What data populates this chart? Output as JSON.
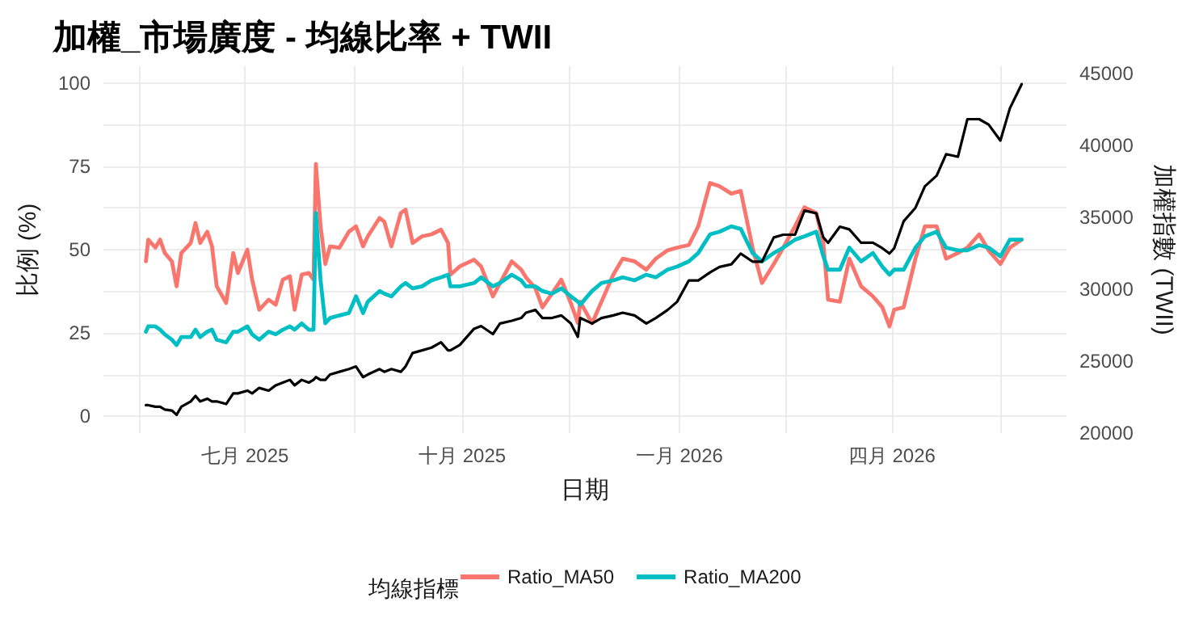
{
  "chart_data": {
    "type": "line",
    "title": "加權_市場廣度 - 均線比率 + TWII",
    "xlabel": "日期",
    "ylabel": "比例 (%)",
    "y2label": "加權指數 (TWII)",
    "legend_title": "均線指標",
    "x": [
      "2025-05-20",
      "2025-05-21",
      "2025-05-24",
      "2025-05-26",
      "2025-05-28",
      "2025-05-31",
      "2025-06-02",
      "2025-06-04",
      "2025-06-08",
      "2025-06-10",
      "2025-06-12",
      "2025-06-15",
      "2025-06-17",
      "2025-06-19",
      "2025-06-23",
      "2025-06-26",
      "2025-06-28",
      "2025-07-02",
      "2025-07-04",
      "2025-07-07",
      "2025-07-11",
      "2025-07-14",
      "2025-07-17",
      "2025-07-20",
      "2025-07-22",
      "2025-07-25",
      "2025-07-28",
      "2025-07-30",
      "2025-07-31",
      "2025-08-02",
      "2025-08-04",
      "2025-08-06",
      "2025-08-10",
      "2025-08-14",
      "2025-08-17",
      "2025-08-20",
      "2025-08-22",
      "2025-08-27",
      "2025-08-29",
      "2025-09-01",
      "2025-09-05",
      "2025-09-07",
      "2025-09-10",
      "2025-09-14",
      "2025-09-18",
      "2025-09-22",
      "2025-09-25",
      "2025-09-26",
      "2025-09-30",
      "2025-10-06",
      "2025-10-09",
      "2025-10-14",
      "2025-10-17",
      "2025-10-22",
      "2025-10-26",
      "2025-10-28",
      "2025-11-01",
      "2025-11-04",
      "2025-11-08",
      "2025-11-12",
      "2025-11-16",
      "2025-11-19",
      "2025-11-20",
      "2025-11-25",
      "2025-11-29",
      "2025-12-04",
      "2025-12-08",
      "2025-12-13",
      "2025-12-18",
      "2025-12-22",
      "2025-12-27",
      "2025-12-31",
      "2026-01-05",
      "2026-01-09",
      "2026-01-14",
      "2026-01-18",
      "2026-01-23",
      "2026-01-27",
      "2026-02-01",
      "2026-02-05",
      "2026-02-10",
      "2026-02-14",
      "2026-02-19",
      "2026-02-23",
      "2026-02-28",
      "2026-03-03",
      "2026-03-05",
      "2026-03-10",
      "2026-03-14",
      "2026-03-19",
      "2026-03-24",
      "2026-03-28",
      "2026-03-31",
      "2026-04-02",
      "2026-04-06",
      "2026-04-11",
      "2026-04-15",
      "2026-04-20",
      "2026-04-24",
      "2026-04-29",
      "2026-05-03",
      "2026-05-08",
      "2026-05-12",
      "2026-05-17",
      "2026-05-21",
      "2026-05-26"
    ],
    "series": [
      {
        "name": "Ratio_MA50",
        "color": "#f8766d",
        "values": [
          46.5,
          53,
          50.6,
          53,
          49,
          46.5,
          39,
          49,
          52,
          58,
          52,
          55.4,
          51,
          39,
          34,
          49,
          43,
          50,
          41,
          32,
          35,
          33.5,
          41,
          42,
          32,
          42.5,
          43,
          41,
          75.7,
          57,
          45.7,
          51,
          50.6,
          55.4,
          57,
          51,
          54,
          59.5,
          58.4,
          51,
          61,
          62,
          52,
          54,
          54.6,
          56,
          52,
          42.5,
          45,
          47,
          45,
          36,
          40,
          46.5,
          44,
          41.7,
          38.4,
          32.7,
          36.8,
          41,
          34,
          28,
          34.4,
          27.9,
          34.4,
          42.5,
          47.3,
          46.5,
          44,
          47.3,
          49.8,
          50.6,
          51.4,
          57,
          70,
          69,
          66.8,
          67.6,
          50.6,
          40,
          45.7,
          50.6,
          57,
          62.7,
          61,
          52,
          35,
          34.4,
          47.3,
          39,
          36,
          32.7,
          27,
          32,
          32.7,
          47.3,
          57,
          57,
          47.3,
          49,
          50.6,
          54.6,
          49.8,
          45.7,
          50.6,
          53
        ]
      },
      {
        "name": "Ratio_MA200",
        "color": "#00bfc4",
        "values": [
          25.4,
          27,
          27,
          26,
          24.6,
          23,
          21.4,
          23.8,
          23.8,
          26,
          23.8,
          25.4,
          26,
          23,
          22.2,
          25.4,
          25.4,
          27,
          24.6,
          23,
          25.4,
          24.6,
          26,
          27,
          26,
          27.9,
          26,
          26,
          61,
          40.8,
          27.9,
          29.5,
          30.3,
          31,
          36,
          31,
          34.4,
          37.6,
          36.8,
          36,
          39,
          40,
          38.4,
          39,
          40.8,
          41.7,
          42.5,
          39,
          39,
          40,
          41.7,
          39,
          40,
          42.5,
          40.8,
          39,
          39,
          37.6,
          36.8,
          38.4,
          36,
          34.4,
          33.5,
          37.6,
          40,
          40.8,
          41.7,
          40.8,
          42.5,
          41.7,
          44,
          44.9,
          46.5,
          49,
          54.6,
          55.4,
          57,
          56.2,
          49,
          46.5,
          49,
          50.6,
          53,
          54,
          55.4,
          48,
          44,
          44,
          50.6,
          46.5,
          49,
          44.9,
          42.5,
          44,
          44,
          50.6,
          54,
          55.4,
          50.6,
          49.8,
          49.8,
          51.4,
          50.6,
          48,
          53,
          53
        ]
      },
      {
        "color": "#000000",
        "axis": "y2",
        "values": [
          21940,
          21940,
          21830,
          21830,
          21640,
          21570,
          21270,
          21830,
          22200,
          22580,
          22200,
          22390,
          22200,
          22200,
          22020,
          22760,
          22760,
          22950,
          22760,
          23140,
          22950,
          23320,
          23510,
          23700,
          23320,
          23700,
          23510,
          23700,
          23890,
          23700,
          23700,
          24070,
          24260,
          24450,
          24630,
          23890,
          24070,
          24450,
          24260,
          24450,
          24260,
          24630,
          25570,
          25750,
          25940,
          26310,
          25750,
          25750,
          26130,
          27250,
          27440,
          26880,
          27620,
          27810,
          28000,
          28370,
          28560,
          28000,
          28000,
          28180,
          27620,
          26690,
          28000,
          27620,
          28000,
          28180,
          28370,
          28180,
          27620,
          28000,
          28560,
          29120,
          30610,
          30610,
          31170,
          31550,
          31730,
          32480,
          31920,
          31920,
          33600,
          33790,
          33790,
          35470,
          35280,
          33600,
          33230,
          34350,
          34160,
          33230,
          33230,
          32850,
          32480,
          32850,
          34720,
          35660,
          37150,
          37900,
          39390,
          39210,
          41820,
          41820,
          41450,
          40330,
          42570,
          44250
        ]
      }
    ],
    "xlim": [
      "2025-05-02",
      "2026-06-14"
    ],
    "xticks": [
      {
        "value": "2025-05-17",
        "label": null
      },
      {
        "value": "2025-07-01",
        "label": "七月 2025"
      },
      {
        "value": "2025-08-16",
        "label": null
      },
      {
        "value": "2025-10-01",
        "label": "十月 2025"
      },
      {
        "value": "2025-11-15",
        "label": null
      },
      {
        "value": "2026-01-01",
        "label": "一月 2026"
      },
      {
        "value": "2026-02-15",
        "label": null
      },
      {
        "value": "2026-04-01",
        "label": "四月 2026"
      },
      {
        "value": "2026-05-17",
        "label": null
      }
    ],
    "ylim": [
      -5,
      105
    ],
    "yticks": [
      0,
      {
        "value": 12.5,
        "label": null
      },
      25,
      {
        "value": 37.5,
        "label": null
      },
      50,
      {
        "value": 62.5,
        "label": null
      },
      75,
      {
        "value": 87.5,
        "label": null
      },
      100
    ],
    "y2lim": [
      20000,
      45500
    ],
    "y2ticks": [
      20000,
      25000,
      30000,
      35000,
      40000,
      45000
    ],
    "grid": true,
    "legend": "bottom",
    "marker": "none"
  }
}
